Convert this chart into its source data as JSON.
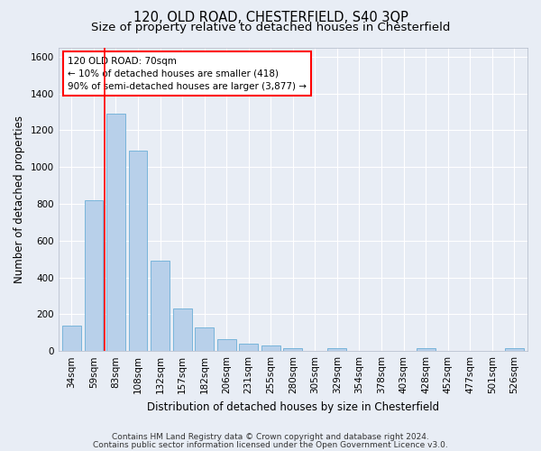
{
  "title": "120, OLD ROAD, CHESTERFIELD, S40 3QP",
  "subtitle": "Size of property relative to detached houses in Chesterfield",
  "xlabel": "Distribution of detached houses by size in Chesterfield",
  "ylabel": "Number of detached properties",
  "categories": [
    "34sqm",
    "59sqm",
    "83sqm",
    "108sqm",
    "132sqm",
    "157sqm",
    "182sqm",
    "206sqm",
    "231sqm",
    "255sqm",
    "280sqm",
    "305sqm",
    "329sqm",
    "354sqm",
    "378sqm",
    "403sqm",
    "428sqm",
    "452sqm",
    "477sqm",
    "501sqm",
    "526sqm"
  ],
  "values": [
    140,
    820,
    1290,
    1090,
    490,
    230,
    130,
    65,
    38,
    28,
    15,
    2,
    15,
    2,
    2,
    2,
    15,
    2,
    2,
    2,
    15
  ],
  "bar_color": "#b8d0ea",
  "bar_edge_color": "#6aaed6",
  "vline_x": 1.5,
  "vline_color": "red",
  "annotation_text": "120 OLD ROAD: 70sqm\n← 10% of detached houses are smaller (418)\n90% of semi-detached houses are larger (3,877) →",
  "annotation_box_facecolor": "white",
  "annotation_box_edgecolor": "red",
  "ylim": [
    0,
    1650
  ],
  "yticks": [
    0,
    200,
    400,
    600,
    800,
    1000,
    1200,
    1400,
    1600
  ],
  "footer1": "Contains HM Land Registry data © Crown copyright and database right 2024.",
  "footer2": "Contains public sector information licensed under the Open Government Licence v3.0.",
  "fig_facecolor": "#e8edf5",
  "plot_facecolor": "#e8edf5",
  "grid_color": "white",
  "title_fontsize": 10.5,
  "subtitle_fontsize": 9.5,
  "xlabel_fontsize": 8.5,
  "ylabel_fontsize": 8.5,
  "tick_fontsize": 7.5,
  "annotation_fontsize": 7.5,
  "footer_fontsize": 6.5
}
